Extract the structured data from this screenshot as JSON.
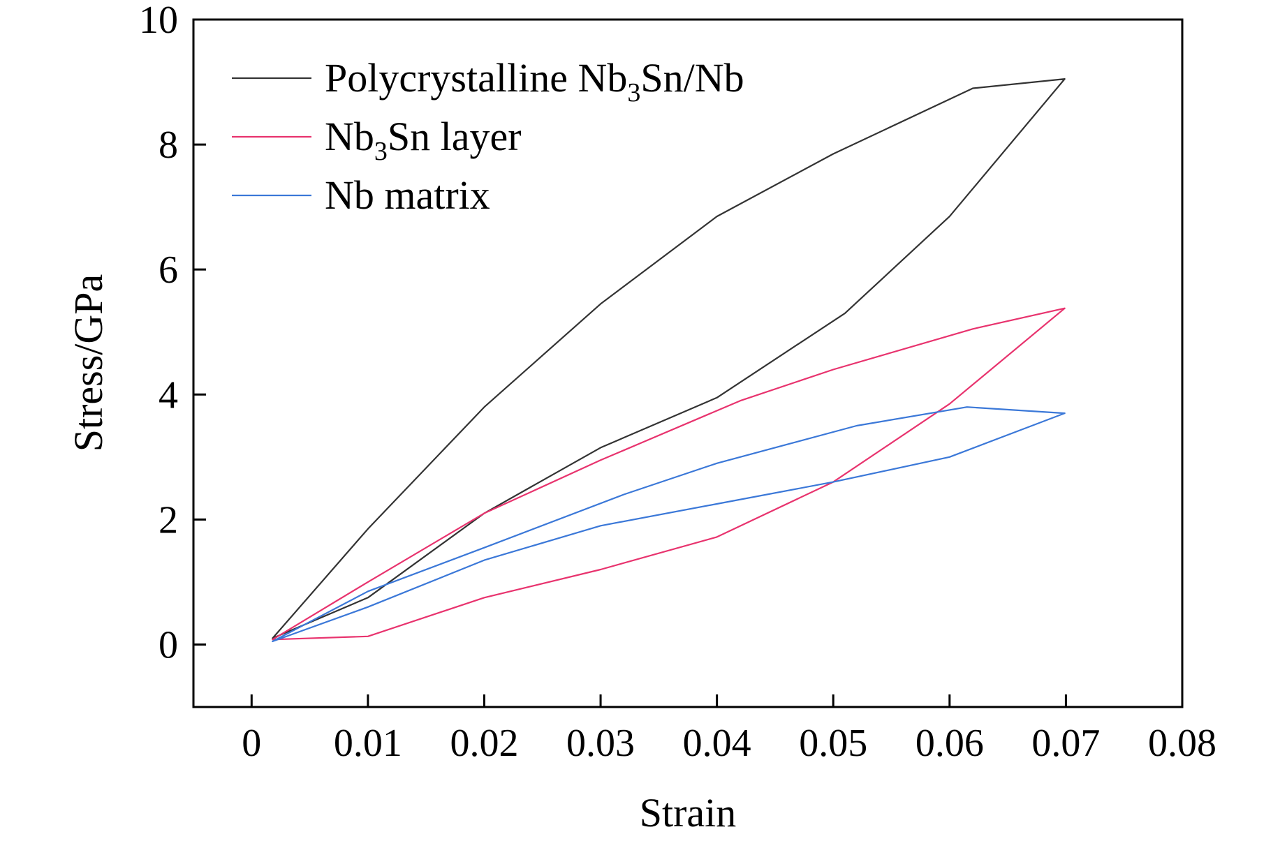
{
  "chart_data": {
    "type": "line",
    "title": "",
    "xlabel": "Strain",
    "ylabel": "Stress/GPa",
    "xlim": [
      -0.005,
      0.08
    ],
    "ylim": [
      -1,
      10
    ],
    "x_ticks": [
      "0",
      "0.01",
      "0.02",
      "0.03",
      "0.04",
      "0.05",
      "0.06",
      "0.07",
      "0.08"
    ],
    "x_tick_values": [
      0,
      0.01,
      0.02,
      0.03,
      0.04,
      0.05,
      0.06,
      0.07,
      0.08
    ],
    "y_ticks": [
      "0",
      "2",
      "4",
      "6",
      "8",
      "10"
    ],
    "y_tick_values": [
      0,
      2,
      4,
      6,
      8,
      10
    ],
    "grid": false,
    "legend_position": "top-left",
    "series": [
      {
        "name": "Polycrystalline Nb3Sn/Nb",
        "legend_main": "Polycrystalline Nb",
        "legend_sub": "3",
        "legend_tail": "Sn/Nb",
        "color": "#333333",
        "points": [
          [
            0.0018,
            0.1
          ],
          [
            0.01,
            1.85
          ],
          [
            0.02,
            3.8
          ],
          [
            0.03,
            5.45
          ],
          [
            0.04,
            6.85
          ],
          [
            0.05,
            7.85
          ],
          [
            0.062,
            8.9
          ],
          [
            0.0699,
            9.05
          ],
          [
            0.06,
            6.85
          ],
          [
            0.051,
            5.3
          ],
          [
            0.04,
            3.95
          ],
          [
            0.03,
            3.15
          ],
          [
            0.02,
            2.1
          ],
          [
            0.01,
            0.75
          ]
        ]
      },
      {
        "name": "Nb3Sn layer",
        "legend_main": "Nb",
        "legend_sub": "3",
        "legend_tail": "Sn layer",
        "color": "#e8336e",
        "points": [
          [
            0.0018,
            0.08
          ],
          [
            0.01,
            1.0
          ],
          [
            0.02,
            2.1
          ],
          [
            0.03,
            2.95
          ],
          [
            0.042,
            3.9
          ],
          [
            0.05,
            4.4
          ],
          [
            0.062,
            5.05
          ],
          [
            0.0699,
            5.38
          ],
          [
            0.06,
            3.85
          ],
          [
            0.05,
            2.6
          ],
          [
            0.04,
            1.72
          ],
          [
            0.03,
            1.2
          ],
          [
            0.02,
            0.75
          ],
          [
            0.01,
            0.13
          ]
        ]
      },
      {
        "name": "Nb matrix",
        "legend_main": "Nb matrix",
        "legend_sub": "",
        "legend_tail": "",
        "color": "#3b78d8",
        "points": [
          [
            0.0018,
            0.05
          ],
          [
            0.01,
            0.85
          ],
          [
            0.02,
            1.55
          ],
          [
            0.032,
            2.4
          ],
          [
            0.04,
            2.9
          ],
          [
            0.052,
            3.5
          ],
          [
            0.0615,
            3.8
          ],
          [
            0.0699,
            3.7
          ],
          [
            0.06,
            3.0
          ],
          [
            0.05,
            2.6
          ],
          [
            0.04,
            2.25
          ],
          [
            0.03,
            1.9
          ],
          [
            0.02,
            1.35
          ],
          [
            0.01,
            0.6
          ]
        ]
      }
    ]
  }
}
